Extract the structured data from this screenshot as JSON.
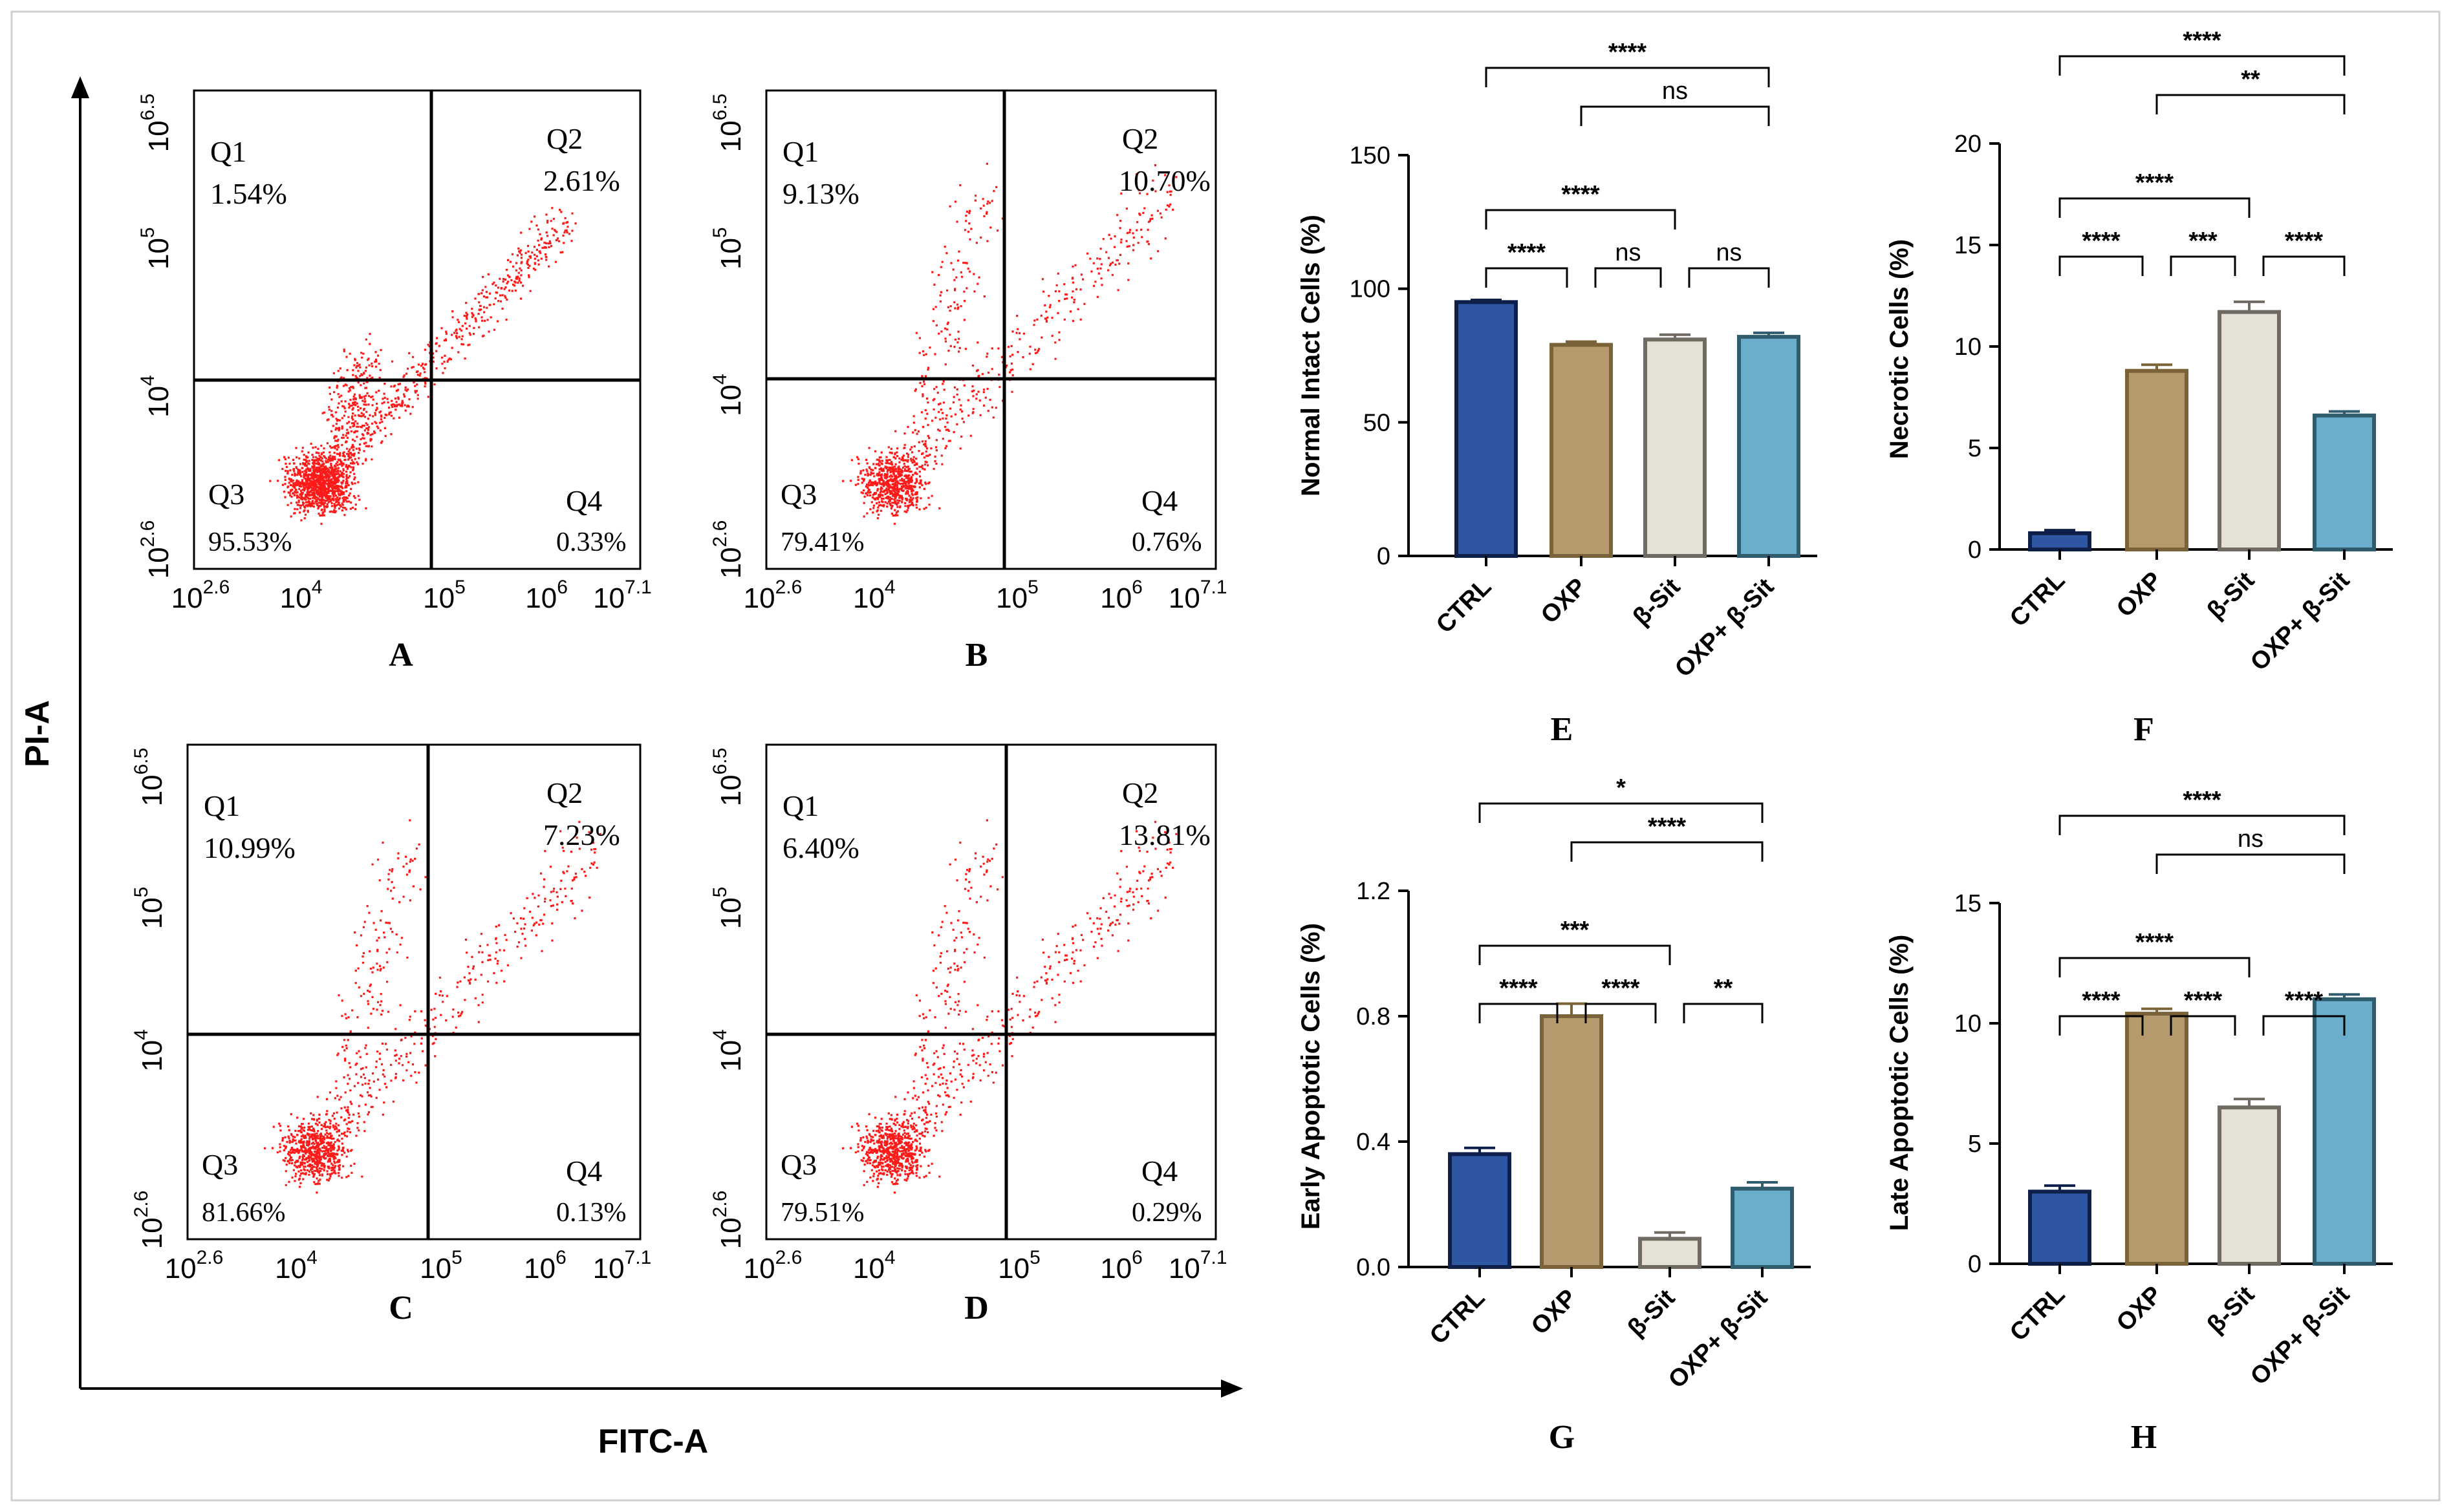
{
  "figure": {
    "y_axis_title": "PI-A",
    "x_axis_title": "FITC-A"
  },
  "flow": {
    "y_ticks": [
      {
        "base": "10",
        "exp": "2.6"
      },
      {
        "base": "10",
        "exp": "4"
      },
      {
        "base": "10",
        "exp": "5"
      },
      {
        "base": "10",
        "exp": "6.5"
      }
    ],
    "x_ticks": [
      {
        "base": "10",
        "exp": "2.6"
      },
      {
        "base": "10",
        "exp": "4"
      },
      {
        "base": "10",
        "exp": "5"
      },
      {
        "base": "10",
        "exp": "6"
      },
      {
        "base": "10",
        "exp": "7.1"
      }
    ],
    "panels": [
      {
        "label": "A",
        "q1": "Q1",
        "q1v": "1.54%",
        "q2": "Q2",
        "q2v": "2.61%",
        "q3": "Q3",
        "q3v": "95.53%",
        "q4": "Q4",
        "q4v": "0.33%"
      },
      {
        "label": "B",
        "q1": "Q1",
        "q1v": "9.13%",
        "q2": "Q2",
        "q2v": "10.70%",
        "q3": "Q3",
        "q3v": "79.41%",
        "q4": "Q4",
        "q4v": "0.76%"
      },
      {
        "label": "C",
        "q1": "Q1",
        "q1v": "10.99%",
        "q2": "Q2",
        "q2v": "7.23%",
        "q3": "Q3",
        "q3v": "81.66%",
        "q4": "Q4",
        "q4v": "0.13%"
      },
      {
        "label": "D",
        "q1": "Q1",
        "q1v": "6.40%",
        "q2": "Q2",
        "q2v": "13.81%",
        "q3": "Q3",
        "q3v": "79.51%",
        "q4": "Q4",
        "q4v": "0.29%"
      }
    ]
  },
  "colors": {
    "dots": "#ff1a1a",
    "CTRL": "#2f56a3",
    "OXP": "#b59a6e",
    "BSIT": "#e6e1d6",
    "COMBO": "#6aaecb"
  },
  "chart_data": [
    {
      "type": "bar",
      "panel": "E",
      "categories": [
        "CTRL",
        "OXP",
        "β-Sit",
        "OXP+ β-Sit"
      ],
      "values": [
        95,
        79,
        81,
        82
      ],
      "errors": [
        0.8,
        1.2,
        1.8,
        1.5
      ],
      "ylabel": "Normal Intact Cells (%)",
      "ylim": [
        0,
        150
      ],
      "yticks": [
        0,
        50,
        100,
        150
      ],
      "comparisons": [
        {
          "from": 0,
          "to": 3,
          "label": "****"
        },
        {
          "from": 1,
          "to": 3,
          "label": "ns"
        },
        {
          "from": 0,
          "to": 2,
          "label": "****"
        },
        {
          "from": 0,
          "to": 1,
          "label": "****"
        },
        {
          "from": 1,
          "to": 2,
          "label": "ns"
        },
        {
          "from": 2,
          "to": 3,
          "label": "ns"
        }
      ]
    },
    {
      "type": "bar",
      "panel": "F",
      "categories": [
        "CTRL",
        "OXP",
        "β-Sit",
        "OXP+ β-Sit"
      ],
      "values": [
        0.8,
        8.8,
        11.7,
        6.6
      ],
      "errors": [
        0.15,
        0.3,
        0.5,
        0.2
      ],
      "ylabel": "Necrotic Cells (%)",
      "ylim": [
        0,
        20
      ],
      "yticks": [
        0,
        5,
        10,
        15,
        20
      ],
      "comparisons": [
        {
          "from": 0,
          "to": 3,
          "label": "****"
        },
        {
          "from": 1,
          "to": 3,
          "label": "**"
        },
        {
          "from": 0,
          "to": 2,
          "label": "****"
        },
        {
          "from": 0,
          "to": 1,
          "label": "****"
        },
        {
          "from": 1,
          "to": 2,
          "label": "***"
        },
        {
          "from": 2,
          "to": 3,
          "label": "****"
        }
      ]
    },
    {
      "type": "bar",
      "panel": "G",
      "categories": [
        "CTRL",
        "OXP",
        "β-Sit",
        "OXP+ β-Sit"
      ],
      "values": [
        0.36,
        0.8,
        0.09,
        0.25
      ],
      "errors": [
        0.02,
        0.04,
        0.02,
        0.02
      ],
      "ylabel": "Early Apoptotic Cells (%)",
      "ylim": [
        0,
        1.2
      ],
      "yticks": [
        "0.0",
        "0.4",
        "0.8",
        "1.2"
      ],
      "comparisons": [
        {
          "from": 0,
          "to": 3,
          "label": "*"
        },
        {
          "from": 1,
          "to": 3,
          "label": "****"
        },
        {
          "from": 0,
          "to": 2,
          "label": "***"
        },
        {
          "from": 0,
          "to": 1,
          "label": "****"
        },
        {
          "from": 1,
          "to": 2,
          "label": "****"
        },
        {
          "from": 2,
          "to": 3,
          "label": "**"
        }
      ]
    },
    {
      "type": "bar",
      "panel": "H",
      "categories": [
        "CTRL",
        "OXP",
        "β-Sit",
        "OXP+ β-Sit"
      ],
      "values": [
        3.0,
        10.4,
        6.5,
        11.0
      ],
      "errors": [
        0.25,
        0.2,
        0.35,
        0.2
      ],
      "ylabel": "Late Apoptotic Cells (%)",
      "ylim": [
        0,
        15
      ],
      "yticks": [
        0,
        5,
        10,
        15
      ],
      "comparisons": [
        {
          "from": 0,
          "to": 3,
          "label": "****"
        },
        {
          "from": 1,
          "to": 3,
          "label": "ns"
        },
        {
          "from": 0,
          "to": 2,
          "label": "****"
        },
        {
          "from": 0,
          "to": 1,
          "label": "****"
        },
        {
          "from": 1,
          "to": 2,
          "label": "****"
        },
        {
          "from": 2,
          "to": 3,
          "label": "****"
        }
      ]
    }
  ]
}
